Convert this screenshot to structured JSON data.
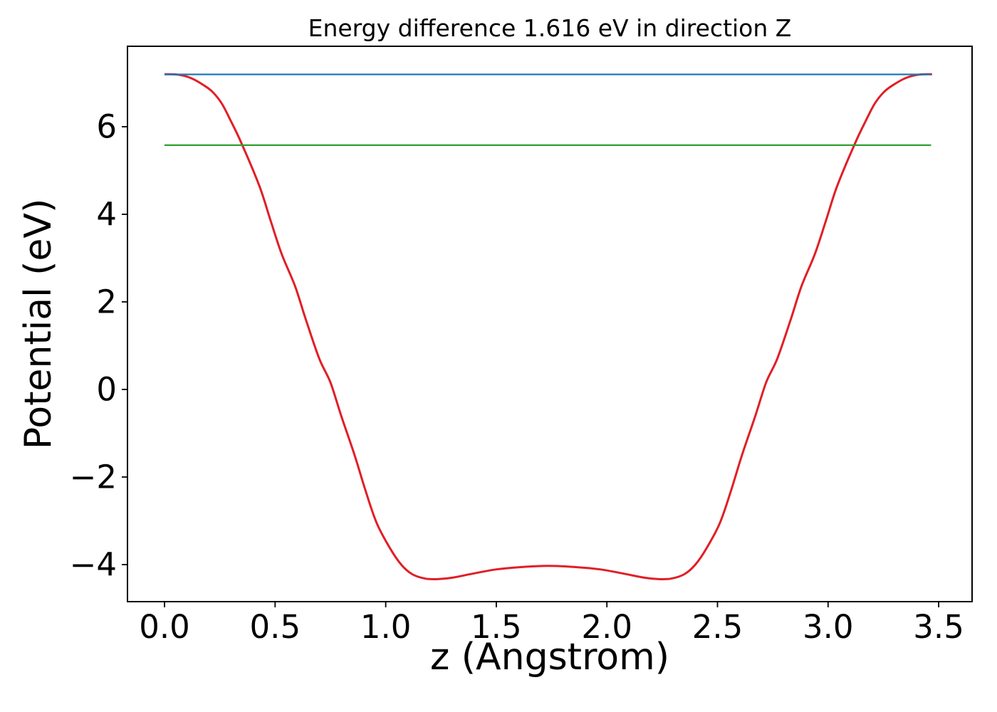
{
  "chart_data": {
    "type": "line",
    "title": "Energy difference 1.616 eV in direction Z",
    "xlabel": "z (Angstrom)",
    "ylabel": "Potential (eV)",
    "energy_difference_eV": 1.616,
    "direction": "Z",
    "xlim": [
      -0.1675,
      3.651
    ],
    "ylim": [
      -4.846,
      7.837
    ],
    "grid": false,
    "legend_position": "none",
    "background_color": "#ffffff",
    "spine_color": "#000000",
    "x_ticks": {
      "values": [
        0.0,
        0.5,
        1.0,
        1.5,
        2.0,
        2.5,
        3.0,
        3.5
      ],
      "labels": [
        "0.0",
        "0.5",
        "1.0",
        "1.5",
        "2.0",
        "2.5",
        "3.0",
        "3.5"
      ]
    },
    "y_ticks": {
      "values": [
        -4,
        -2,
        0,
        2,
        4,
        6
      ],
      "labels": [
        "−4",
        "−2",
        "0",
        "2",
        "4",
        "6"
      ]
    },
    "series": [
      {
        "name": "potential-curve",
        "color": "#e01f26",
        "line_width": 3,
        "smooth": true,
        "points": [
          [
            0.0,
            7.2
          ],
          [
            0.06,
            7.19
          ],
          [
            0.12,
            7.11
          ],
          [
            0.18,
            6.94
          ],
          [
            0.22,
            6.78
          ],
          [
            0.26,
            6.52
          ],
          [
            0.3,
            6.13
          ],
          [
            0.35,
            5.6
          ],
          [
            0.43,
            4.63
          ],
          [
            0.48,
            3.85
          ],
          [
            0.53,
            3.09
          ],
          [
            0.59,
            2.36
          ],
          [
            0.64,
            1.58
          ],
          [
            0.7,
            0.7
          ],
          [
            0.75,
            0.16
          ],
          [
            0.8,
            -0.62
          ],
          [
            0.86,
            -1.51
          ],
          [
            0.91,
            -2.33
          ],
          [
            0.96,
            -3.06
          ],
          [
            1.02,
            -3.63
          ],
          [
            1.07,
            -4.0
          ],
          [
            1.12,
            -4.22
          ],
          [
            1.18,
            -4.32
          ],
          [
            1.24,
            -4.33
          ],
          [
            1.3,
            -4.3
          ],
          [
            1.4,
            -4.2
          ],
          [
            1.5,
            -4.11
          ],
          [
            1.6,
            -4.06
          ],
          [
            1.73,
            -4.03
          ],
          [
            1.87,
            -4.06
          ],
          [
            1.97,
            -4.11
          ],
          [
            2.07,
            -4.2
          ],
          [
            2.17,
            -4.3
          ],
          [
            2.23,
            -4.33
          ],
          [
            2.29,
            -4.32
          ],
          [
            2.35,
            -4.22
          ],
          [
            2.4,
            -4.0
          ],
          [
            2.45,
            -3.63
          ],
          [
            2.51,
            -3.06
          ],
          [
            2.56,
            -2.33
          ],
          [
            2.61,
            -1.51
          ],
          [
            2.67,
            -0.62
          ],
          [
            2.72,
            0.16
          ],
          [
            2.77,
            0.7
          ],
          [
            2.83,
            1.58
          ],
          [
            2.88,
            2.36
          ],
          [
            2.94,
            3.09
          ],
          [
            2.99,
            3.85
          ],
          [
            3.04,
            4.63
          ],
          [
            3.12,
            5.6
          ],
          [
            3.17,
            6.13
          ],
          [
            3.21,
            6.52
          ],
          [
            3.25,
            6.78
          ],
          [
            3.29,
            6.94
          ],
          [
            3.35,
            7.11
          ],
          [
            3.41,
            7.19
          ],
          [
            3.47,
            7.2
          ]
        ]
      },
      {
        "name": "upper-level-line",
        "color": "#1f77b4",
        "line_width": 2.2,
        "smooth": false,
        "level_eV": 7.194,
        "points": [
          [
            0.0,
            7.194
          ],
          [
            3.466,
            7.194
          ]
        ]
      },
      {
        "name": "lower-level-line",
        "color": "#2ca02c",
        "line_width": 2.2,
        "smooth": false,
        "level_eV": 5.578,
        "points": [
          [
            0.0,
            5.578
          ],
          [
            3.466,
            5.578
          ]
        ]
      }
    ]
  }
}
